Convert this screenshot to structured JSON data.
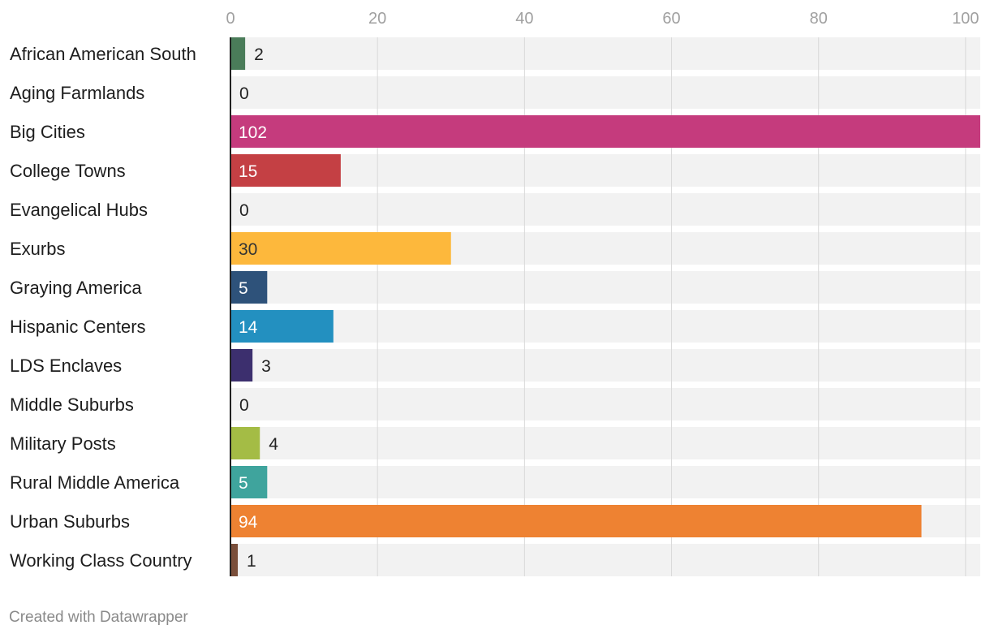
{
  "chart_data": {
    "type": "bar",
    "orientation": "horizontal",
    "categories": [
      "African American South",
      "Aging Farmlands",
      "Big Cities",
      "College Towns",
      "Evangelical Hubs",
      "Exurbs",
      "Graying America",
      "Hispanic Centers",
      "LDS Enclaves",
      "Middle Suburbs",
      "Military Posts",
      "Rural Middle America",
      "Urban Suburbs",
      "Working Class Country"
    ],
    "values": [
      2,
      0,
      102,
      15,
      0,
      30,
      5,
      14,
      3,
      0,
      4,
      5,
      94,
      1
    ],
    "colors": [
      "#4a7c59",
      "#999999",
      "#c53b7d",
      "#c44044",
      "#999999",
      "#fdb83c",
      "#2e527a",
      "#2390c0",
      "#3c2f6e",
      "#999999",
      "#a4bc45",
      "#3fa49d",
      "#ee8232",
      "#7a4e3a"
    ],
    "x_ticks": [
      0,
      20,
      40,
      60,
      80,
      100
    ],
    "xlim": [
      0,
      102
    ],
    "xlabel": "",
    "ylabel": "",
    "grid": true,
    "axis_position": "top"
  },
  "footer": "Created with Datawrapper"
}
